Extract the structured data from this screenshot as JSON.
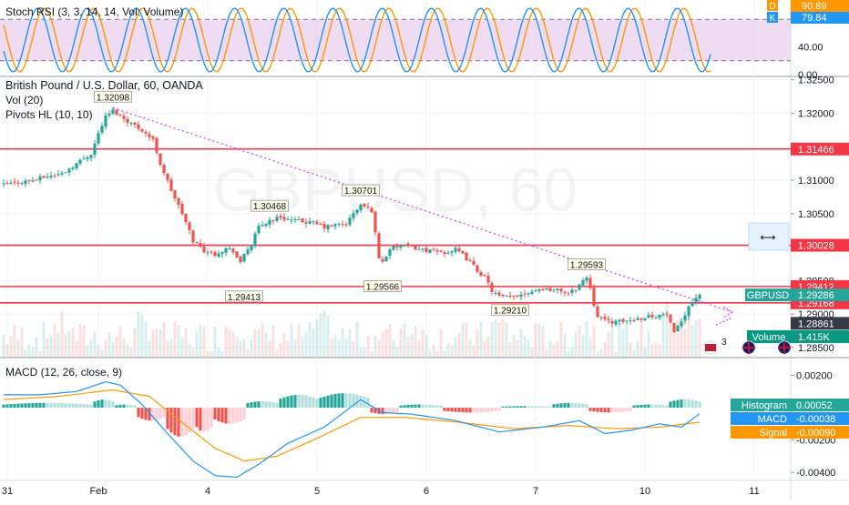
{
  "colors": {
    "up": "#26a69a",
    "down": "#ef5350",
    "k_line": "#2196f3",
    "d_line": "#ff9800",
    "rsi_band": "#e1bee7",
    "resistance": "#f23645",
    "trendline": "#e040fb",
    "hist_up_strong": "#26a69a",
    "hist_up_weak": "#b2dfdb",
    "hist_down_strong": "#ef5350",
    "hist_down_weak": "#ffcdd2",
    "macd_line": "#2196f3",
    "signal_line": "#ff9800",
    "price_badge": "#26a69a",
    "volume_badge": "#089981"
  },
  "stoch_panel": {
    "legend": "Stoch RSI (3, 3, 14, 14, Vol: Volume)",
    "d_label": "D",
    "d_value": "90.89",
    "k_label": "K",
    "k_value": "79.84",
    "ticks": [
      "40.00",
      "0.00"
    ]
  },
  "main_panel": {
    "title": "British Pound / U.S. Dollar, 60, OANDA",
    "vol_legend": "Vol (20)",
    "pivots_legend": "Pivots HL (10, 10)",
    "price_ticks": [
      "1.32500",
      "1.32000",
      "1.31500",
      "1.31000",
      "1.30500",
      "1.30000",
      "1.29500",
      "1.29000",
      "1.28500"
    ],
    "pivot_labels": [
      "1.32098",
      "1.30468",
      "1.30701",
      "1.29413",
      "1.29566",
      "1.29210",
      "1.29593"
    ],
    "level_badges": [
      "1.31466",
      "1.30028",
      "1.29412",
      "1.29168"
    ],
    "symbol_badge": "GBPUSD",
    "symbol_price": "1.29286",
    "grey_badge": "1.28861",
    "volume_label": "Volume",
    "volume_value": "1.415K",
    "event_count": "3",
    "watermark": "GBPUSD, 60"
  },
  "macd_panel": {
    "legend": "MACD (12, 26, close, 9)",
    "ticks": [
      "0.00200",
      "0.00000",
      "-0.00200",
      "-0.00400"
    ],
    "histogram_label": "Histogram",
    "histogram_value": "0.00052",
    "macd_label": "MACD",
    "macd_value": "-0.00038",
    "signal_label": "Signal",
    "signal_value": "-0.00090"
  },
  "time_axis": [
    "31",
    "Feb",
    "4",
    "5",
    "6",
    "7",
    "10",
    "11"
  ],
  "chart_data": {
    "type": "candlestick",
    "symbol": "GBPUSD",
    "interval": "60",
    "source": "OANDA",
    "y_range": [
      1.2835,
      1.3255
    ],
    "close_path": [
      {
        "t": 0,
        "p": 1.3093
      },
      {
        "t": 4,
        "p": 1.3097
      },
      {
        "t": 8,
        "p": 1.31
      },
      {
        "t": 12,
        "p": 1.3106
      },
      {
        "t": 16,
        "p": 1.311
      },
      {
        "t": 20,
        "p": 1.3125
      },
      {
        "t": 24,
        "p": 1.314
      },
      {
        "t": 26,
        "p": 1.317
      },
      {
        "t": 28,
        "p": 1.3195
      },
      {
        "t": 30,
        "p": 1.3204
      },
      {
        "t": 32,
        "p": 1.3196
      },
      {
        "t": 35,
        "p": 1.3185
      },
      {
        "t": 38,
        "p": 1.3175
      },
      {
        "t": 41,
        "p": 1.316
      },
      {
        "t": 43,
        "p": 1.3125
      },
      {
        "t": 46,
        "p": 1.3085
      },
      {
        "t": 49,
        "p": 1.305
      },
      {
        "t": 52,
        "p": 1.301
      },
      {
        "t": 55,
        "p": 1.2995
      },
      {
        "t": 58,
        "p": 1.299
      },
      {
        "t": 61,
        "p": 1.2998
      },
      {
        "t": 63,
        "p": 1.2995
      },
      {
        "t": 65,
        "p": 1.2975
      },
      {
        "t": 66,
        "p": 1.299
      },
      {
        "t": 68,
        "p": 1.3005
      },
      {
        "t": 70,
        "p": 1.303
      },
      {
        "t": 73,
        "p": 1.304
      },
      {
        "t": 76,
        "p": 1.3045
      },
      {
        "t": 79,
        "p": 1.304
      },
      {
        "t": 82,
        "p": 1.3038
      },
      {
        "t": 85,
        "p": 1.3036
      },
      {
        "t": 88,
        "p": 1.303
      },
      {
        "t": 91,
        "p": 1.3033
      },
      {
        "t": 94,
        "p": 1.3035
      },
      {
        "t": 96,
        "p": 1.305
      },
      {
        "t": 98,
        "p": 1.3063
      },
      {
        "t": 100,
        "p": 1.3058
      },
      {
        "t": 101,
        "p": 1.3055
      },
      {
        "t": 102,
        "p": 1.302
      },
      {
        "t": 103,
        "p": 1.2985
      },
      {
        "t": 104,
        "p": 1.2978
      },
      {
        "t": 106,
        "p": 1.2998
      },
      {
        "t": 109,
        "p": 1.3002
      },
      {
        "t": 112,
        "p": 1.3
      },
      {
        "t": 115,
        "p": 1.2996
      },
      {
        "t": 118,
        "p": 1.2994
      },
      {
        "t": 121,
        "p": 1.2992
      },
      {
        "t": 124,
        "p": 1.2996
      },
      {
        "t": 126,
        "p": 1.2988
      },
      {
        "t": 128,
        "p": 1.2978
      },
      {
        "t": 130,
        "p": 1.2965
      },
      {
        "t": 132,
        "p": 1.2955
      },
      {
        "t": 134,
        "p": 1.2935
      },
      {
        "t": 136,
        "p": 1.2926
      },
      {
        "t": 139,
        "p": 1.2925
      },
      {
        "t": 142,
        "p": 1.293
      },
      {
        "t": 145,
        "p": 1.2935
      },
      {
        "t": 148,
        "p": 1.2938
      },
      {
        "t": 151,
        "p": 1.2936
      },
      {
        "t": 153,
        "p": 1.2935
      },
      {
        "t": 155,
        "p": 1.293
      },
      {
        "t": 157,
        "p": 1.2938
      },
      {
        "t": 159,
        "p": 1.295
      },
      {
        "t": 160,
        "p": 1.2955
      },
      {
        "t": 161,
        "p": 1.294
      },
      {
        "t": 162,
        "p": 1.2915
      },
      {
        "t": 163,
        "p": 1.2898
      },
      {
        "t": 165,
        "p": 1.289
      },
      {
        "t": 168,
        "p": 1.2888
      },
      {
        "t": 171,
        "p": 1.289
      },
      {
        "t": 174,
        "p": 1.2893
      },
      {
        "t": 177,
        "p": 1.2897
      },
      {
        "t": 180,
        "p": 1.2898
      },
      {
        "t": 182,
        "p": 1.29
      },
      {
        "t": 184,
        "p": 1.287
      },
      {
        "t": 186,
        "p": 1.289
      },
      {
        "t": 188,
        "p": 1.2912
      },
      {
        "t": 190,
        "p": 1.2925
      },
      {
        "t": 191,
        "p": 1.293
      }
    ],
    "pivots": [
      {
        "kind": "high",
        "t": 30,
        "price": 1.32098
      },
      {
        "kind": "high",
        "t": 73,
        "price": 1.30468
      },
      {
        "kind": "high",
        "t": 98,
        "price": 1.30701
      },
      {
        "kind": "low",
        "t": 66,
        "price": 1.29413
      },
      {
        "kind": "low",
        "t": 104,
        "price": 1.29566
      },
      {
        "kind": "low",
        "t": 139,
        "price": 1.2921
      },
      {
        "kind": "high",
        "t": 160,
        "price": 1.29593
      }
    ],
    "horizontal_levels": [
      1.31466,
      1.30028,
      1.29412,
      1.29168
    ],
    "trendline": {
      "from": {
        "t": 30,
        "price": 1.3208
      },
      "to": {
        "t": 200,
        "price": 1.2903
      }
    },
    "last_price": 1.29286,
    "stoch_rsi": {
      "params": "3, 3, 14, 14",
      "k_last": 79.84,
      "d_last": 90.89,
      "y_range": [
        0,
        100
      ],
      "band": [
        20,
        80
      ]
    },
    "macd": {
      "params": "12, 26, close, 9",
      "y_range": [
        -0.0045,
        0.0031
      ],
      "histogram_last": 0.00052,
      "macd_last": -0.00038,
      "signal_last": -0.0009,
      "macd_path": [
        {
          "t": 0,
          "v": 0.0008
        },
        {
          "t": 10,
          "v": 0.0008
        },
        {
          "t": 20,
          "v": 0.001
        },
        {
          "t": 28,
          "v": 0.0016
        },
        {
          "t": 32,
          "v": 0.0014
        },
        {
          "t": 38,
          "v": 0.0002
        },
        {
          "t": 45,
          "v": -0.0016
        },
        {
          "t": 52,
          "v": -0.0033
        },
        {
          "t": 58,
          "v": -0.0042
        },
        {
          "t": 64,
          "v": -0.0043
        },
        {
          "t": 70,
          "v": -0.0035
        },
        {
          "t": 78,
          "v": -0.0022
        },
        {
          "t": 88,
          "v": -0.0012
        },
        {
          "t": 98,
          "v": 0.0005
        },
        {
          "t": 104,
          "v": -0.0003
        },
        {
          "t": 112,
          "v": -0.0004
        },
        {
          "t": 124,
          "v": -0.0008
        },
        {
          "t": 136,
          "v": -0.0015
        },
        {
          "t": 148,
          "v": -0.0012
        },
        {
          "t": 158,
          "v": -0.0008
        },
        {
          "t": 165,
          "v": -0.0016
        },
        {
          "t": 172,
          "v": -0.0014
        },
        {
          "t": 180,
          "v": -0.001
        },
        {
          "t": 186,
          "v": -0.0012
        },
        {
          "t": 191,
          "v": -0.00038
        }
      ],
      "signal_path": [
        {
          "t": 0,
          "v": 0.0005
        },
        {
          "t": 15,
          "v": 0.0007
        },
        {
          "t": 30,
          "v": 0.0011
        },
        {
          "t": 40,
          "v": 0.0007
        },
        {
          "t": 50,
          "v": -0.0011
        },
        {
          "t": 58,
          "v": -0.0025
        },
        {
          "t": 66,
          "v": -0.0033
        },
        {
          "t": 75,
          "v": -0.003
        },
        {
          "t": 85,
          "v": -0.002
        },
        {
          "t": 98,
          "v": -0.0006
        },
        {
          "t": 110,
          "v": -0.0006
        },
        {
          "t": 125,
          "v": -0.0009
        },
        {
          "t": 140,
          "v": -0.0013
        },
        {
          "t": 155,
          "v": -0.0011
        },
        {
          "t": 168,
          "v": -0.0013
        },
        {
          "t": 180,
          "v": -0.0012
        },
        {
          "t": 191,
          "v": -0.0009
        }
      ],
      "histogram": [
        {
          "from": 0,
          "to": 24,
          "v": 0.0003
        },
        {
          "from": 25,
          "to": 30,
          "v": 0.0005
        },
        {
          "from": 31,
          "to": 36,
          "v": 0.0002
        },
        {
          "from": 37,
          "to": 44,
          "v": -0.0008
        },
        {
          "from": 45,
          "to": 52,
          "v": -0.0018
        },
        {
          "from": 53,
          "to": 57,
          "v": -0.0015
        },
        {
          "from": 58,
          "to": 66,
          "v": -0.001
        },
        {
          "from": 67,
          "to": 75,
          "v": 0.0004
        },
        {
          "from": 76,
          "to": 86,
          "v": 0.0008
        },
        {
          "from": 87,
          "to": 100,
          "v": 0.0009
        },
        {
          "from": 101,
          "to": 108,
          "v": -0.0004
        },
        {
          "from": 109,
          "to": 120,
          "v": 0.0002
        },
        {
          "from": 121,
          "to": 136,
          "v": -0.0003
        },
        {
          "from": 137,
          "to": 150,
          "v": 0.0001
        },
        {
          "from": 151,
          "to": 160,
          "v": 0.0003
        },
        {
          "from": 161,
          "to": 172,
          "v": -0.0003
        },
        {
          "from": 173,
          "to": 182,
          "v": 0.0002
        },
        {
          "from": 183,
          "to": 191,
          "v": 0.00052
        }
      ]
    },
    "volume": {
      "last": "1.415K"
    }
  }
}
